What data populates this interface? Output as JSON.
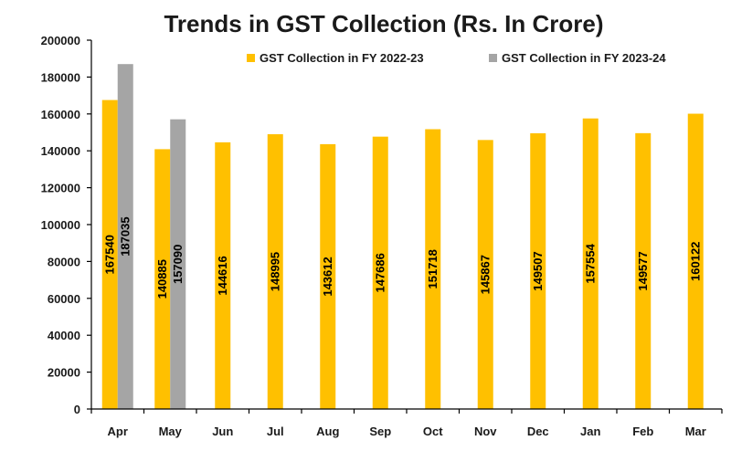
{
  "chart_data": {
    "type": "bar",
    "title": "Trends in GST Collection (Rs. In Crore)",
    "xlabel": "",
    "ylabel": "",
    "ylim": [
      0,
      200000
    ],
    "yticks": [
      0,
      20000,
      40000,
      60000,
      80000,
      100000,
      120000,
      140000,
      160000,
      180000,
      200000
    ],
    "legend_position": "top-right",
    "grid": false,
    "categories": [
      "Apr",
      "May",
      "Jun",
      "Jul",
      "Aug",
      "Sep",
      "Oct",
      "Nov",
      "Dec",
      "Jan",
      "Feb",
      "Mar"
    ],
    "series": [
      {
        "name": "GST Collection in FY 2022-23",
        "color": "#FFC000",
        "values": [
          167540,
          140885,
          144616,
          148995,
          143612,
          147686,
          151718,
          145867,
          149507,
          157554,
          149577,
          160122
        ]
      },
      {
        "name": "GST Collection in FY 2023-24",
        "color": "#A5A5A5",
        "values": [
          187035,
          157090,
          null,
          null,
          null,
          null,
          null,
          null,
          null,
          null,
          null,
          null
        ]
      }
    ]
  }
}
